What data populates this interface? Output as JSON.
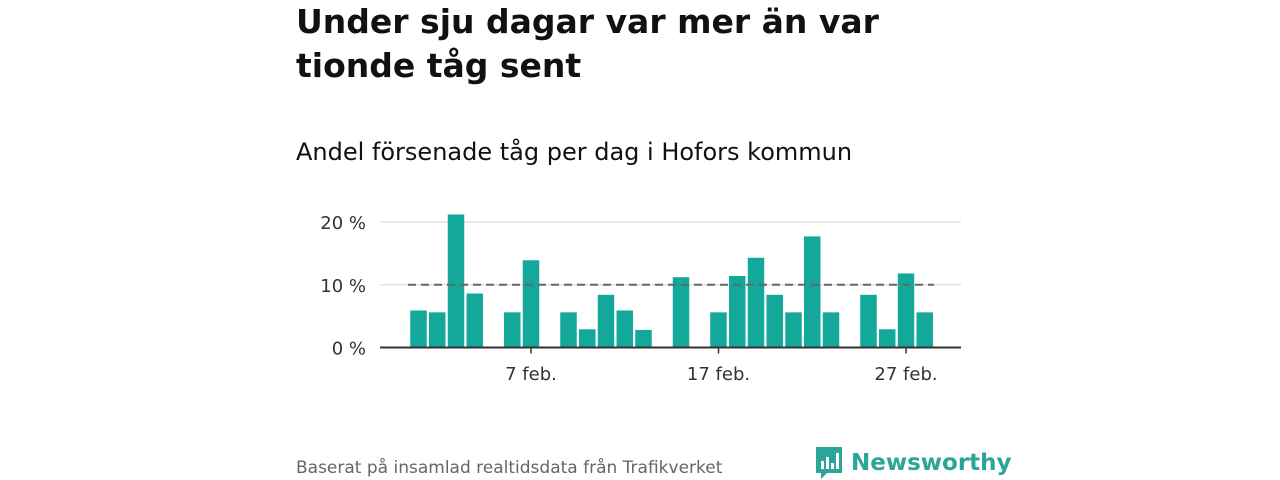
{
  "title": "Under sju dagar var mer än var tionde tåg sent",
  "subtitle": "Andel försenade tåg per dag i Hofors kommun",
  "source": "Baserat på insamlad realtidsdata från Trafikverket",
  "brand": {
    "name": "Newsworthy",
    "icon": "newsworthy-chart-logo-icon",
    "color": "#2aa597"
  },
  "colors": {
    "bar": "#14a89b",
    "reference_line": "#666666",
    "grid": "#dddddd",
    "axis": "#333333"
  },
  "chart_data": {
    "type": "bar",
    "x": [
      1,
      2,
      3,
      4,
      5,
      6,
      7,
      8,
      9,
      10,
      11,
      12,
      13,
      14,
      15,
      16,
      17,
      18,
      19,
      20,
      21,
      22,
      23,
      24,
      25,
      26,
      27,
      28,
      29
    ],
    "values": [
      5.9,
      5.6,
      21.2,
      8.6,
      null,
      5.6,
      13.9,
      null,
      5.6,
      2.9,
      8.4,
      5.9,
      2.8,
      null,
      11.2,
      null,
      5.6,
      11.4,
      14.3,
      8.4,
      5.6,
      17.7,
      5.6,
      null,
      8.4,
      2.9,
      11.8,
      5.6,
      null
    ],
    "reference_line": 10,
    "ylim": [
      0,
      22
    ],
    "yticks": [
      0,
      10,
      20
    ],
    "ytick_labels": [
      "0 %",
      "10 %",
      "20 %"
    ],
    "xticks": [
      7,
      17,
      27
    ],
    "xtick_labels": [
      "7 feb.",
      "17 feb.",
      "27 feb."
    ],
    "grid": true
  }
}
